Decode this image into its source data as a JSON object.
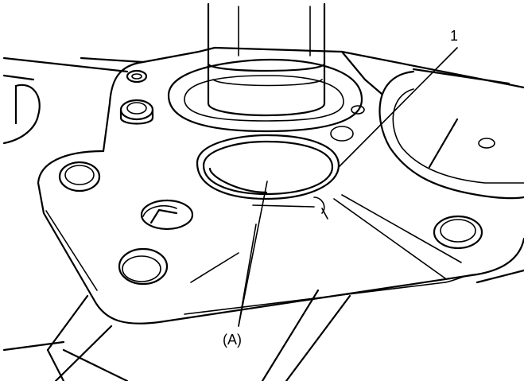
{
  "labels": {
    "part_number": "1",
    "callout_a": "(A)"
  },
  "colors": {
    "line": "#000000",
    "background": "#ffffff"
  }
}
